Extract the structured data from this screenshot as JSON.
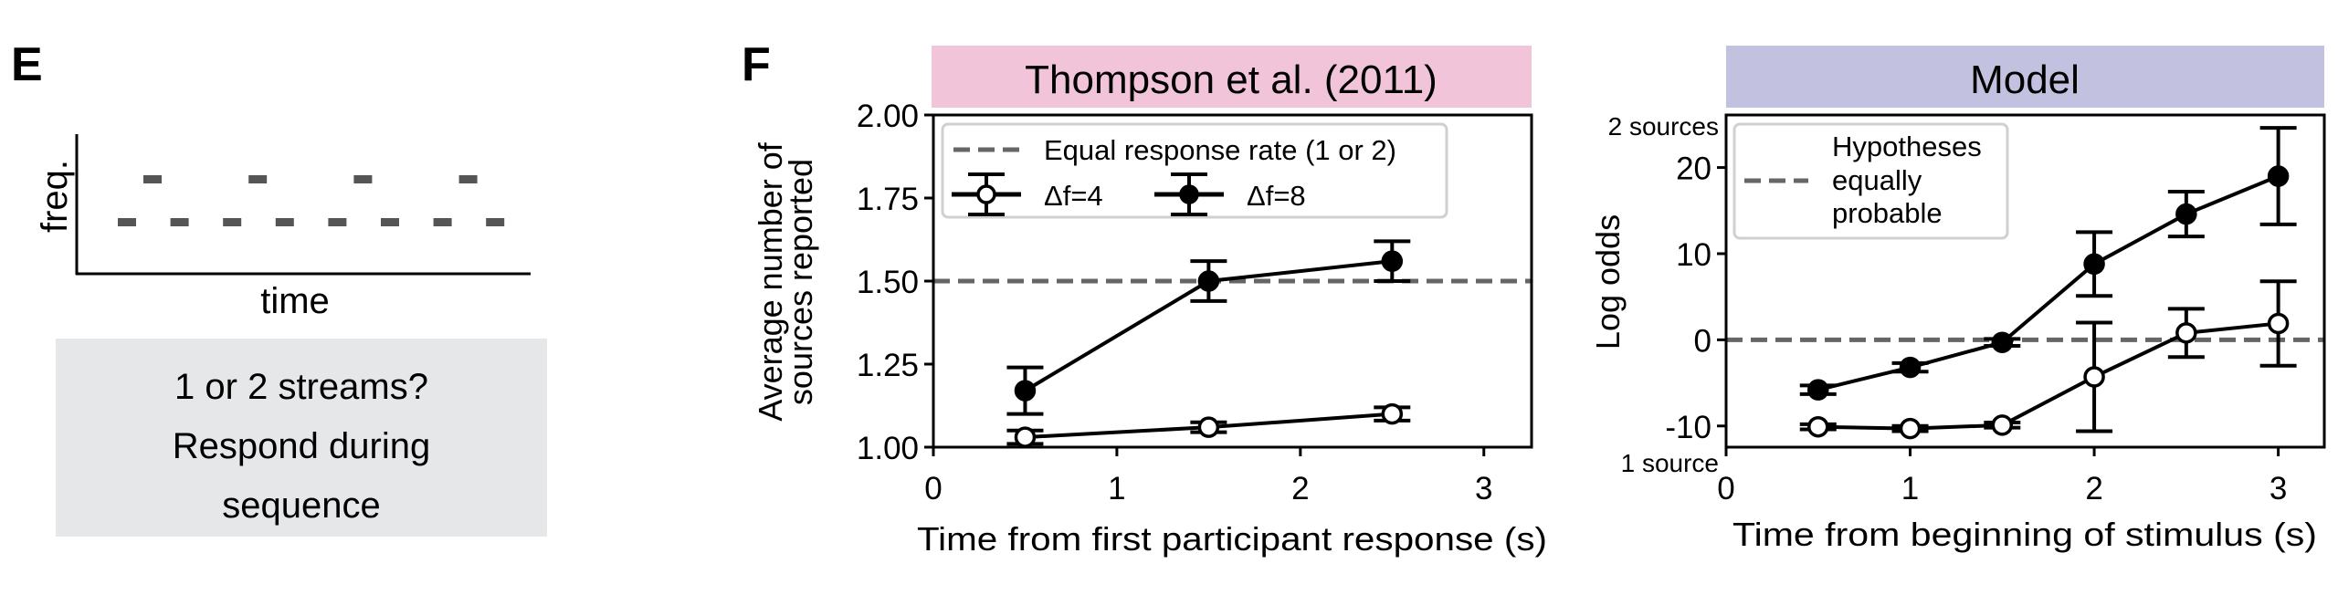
{
  "panel_e": {
    "letter": "E",
    "ylabel": "freq.",
    "xlabel": "time",
    "task_lines": [
      "1 or 2 streams?",
      "Respond during",
      "sequence"
    ],
    "box_color": "#e6e7e9",
    "tone_color": "#555555"
  },
  "panel_f_letter": "F",
  "chart_data": [
    {
      "type": "line",
      "title": "Thompson et al. (2011)",
      "title_bg": "#f2c4da",
      "xlabel": "Time from first participant response (s)",
      "ylabel_lines": [
        "Average number of",
        "sources reported"
      ],
      "xlim": [
        0,
        3.26
      ],
      "ylim": [
        1.0,
        2.0
      ],
      "xticks": [
        0,
        1,
        2,
        3
      ],
      "xtick_labels": [
        "0",
        "1",
        "2",
        "3"
      ],
      "yticks": [
        1.0,
        1.25,
        1.5,
        1.75,
        2.0
      ],
      "ytick_labels": [
        "1.00",
        "1.25",
        "1.50",
        "1.75",
        "2.00"
      ],
      "reference_line": {
        "y": 1.5,
        "label": "Equal response rate (1 or 2)",
        "color": "#666666"
      },
      "legend_position": "top-left",
      "series": [
        {
          "name": "Δf=4",
          "marker": "open",
          "x": [
            0.5,
            1.5,
            2.5
          ],
          "y": [
            1.03,
            1.06,
            1.1
          ],
          "err": [
            0.02,
            0.015,
            0.02
          ]
        },
        {
          "name": "Δf=8",
          "marker": "filled",
          "x": [
            0.5,
            1.5,
            2.5
          ],
          "y": [
            1.17,
            1.5,
            1.56
          ],
          "err": [
            0.07,
            0.06,
            0.06
          ]
        }
      ]
    },
    {
      "type": "line",
      "title": "Model",
      "title_bg": "#c2c2e0",
      "xlabel": "Time from beginning of stimulus (s)",
      "ylabel": "Log odds",
      "top_annotation": "2 sources",
      "bottom_annotation": "1 source",
      "xlim": [
        0,
        3.25
      ],
      "ylim": [
        -12.46,
        26.1
      ],
      "xticks": [
        0,
        1,
        2,
        3
      ],
      "xtick_labels": [
        "0",
        "1",
        "2",
        "3"
      ],
      "yticks": [
        -10,
        0,
        10,
        20
      ],
      "ytick_labels": [
        "-10",
        "0",
        "10",
        "20"
      ],
      "reference_line": {
        "y": 0,
        "label_lines": [
          "Hypotheses",
          "equally",
          "probable"
        ],
        "color": "#666666"
      },
      "legend_position": "top-left",
      "series": [
        {
          "name": "Δf=4",
          "marker": "open",
          "x": [
            0.5,
            1,
            1.5,
            2,
            2.5,
            3
          ],
          "y": [
            -10.1,
            -10.3,
            -9.9,
            -4.3,
            0.8,
            1.9
          ],
          "err": [
            0.3,
            0.3,
            0.3,
            6.3,
            2.8,
            4.9
          ]
        },
        {
          "name": "Δf=8",
          "marker": "filled",
          "x": [
            0.5,
            1,
            1.5,
            2,
            2.5,
            3
          ],
          "y": [
            -5.8,
            -3.2,
            -0.3,
            8.8,
            14.6,
            19.0
          ],
          "err": [
            0.5,
            0.5,
            0.4,
            3.7,
            2.6,
            5.6
          ]
        }
      ]
    }
  ]
}
